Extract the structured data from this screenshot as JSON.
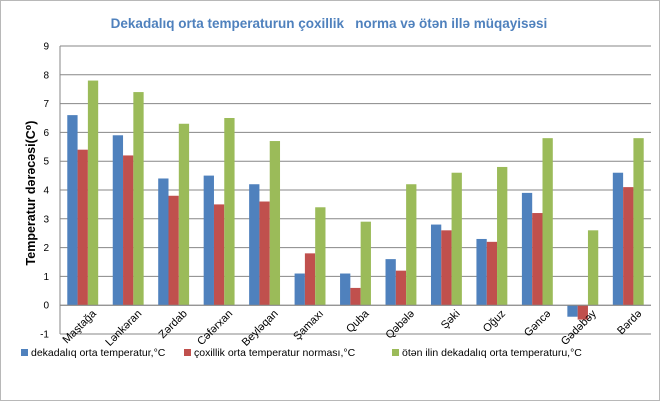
{
  "chart_data": {
    "type": "bar",
    "title": "Dekadalıq orta temperaturun çoxillik   norma və ötən illə müqayisəsi",
    "ylabel": "Temperatur dərəcəsi(C⁰)",
    "xlabel": "",
    "ylim": [
      -1,
      9
    ],
    "yticks": [
      "-1",
      "0",
      "1",
      "2",
      "3",
      "4",
      "5",
      "6",
      "7",
      "8",
      "9"
    ],
    "categories": [
      "Maştağa",
      "Lənkəran",
      "Zərdab",
      "Cəfərxan",
      "Beyləqan",
      "Şamaxı",
      "Quba",
      "Qəbələ",
      "Şəki",
      "Oğuz",
      "Gəncə",
      "Gədəbəy",
      "Bərdə"
    ],
    "series": [
      {
        "name": "dekadalıq orta temperatur,°C",
        "color": "#4f81bd",
        "values": [
          6.6,
          5.9,
          4.4,
          4.5,
          4.2,
          1.1,
          1.1,
          1.6,
          2.8,
          2.3,
          3.9,
          -0.4,
          4.6
        ]
      },
      {
        "name": "çoxillik orta temperatur norması,°C",
        "color": "#c0504d",
        "values": [
          5.4,
          5.2,
          3.8,
          3.5,
          3.6,
          1.8,
          0.6,
          1.2,
          2.6,
          2.2,
          3.2,
          -0.5,
          4.1
        ]
      },
      {
        "name": "ötən ilin dekadalıq orta temperaturu,°C",
        "color": "#9bbb59",
        "values": [
          7.8,
          7.4,
          6.3,
          6.5,
          5.7,
          3.4,
          2.9,
          4.2,
          4.6,
          4.8,
          5.8,
          2.6,
          5.8
        ]
      }
    ],
    "grid": true,
    "legend_position": "bottom"
  }
}
